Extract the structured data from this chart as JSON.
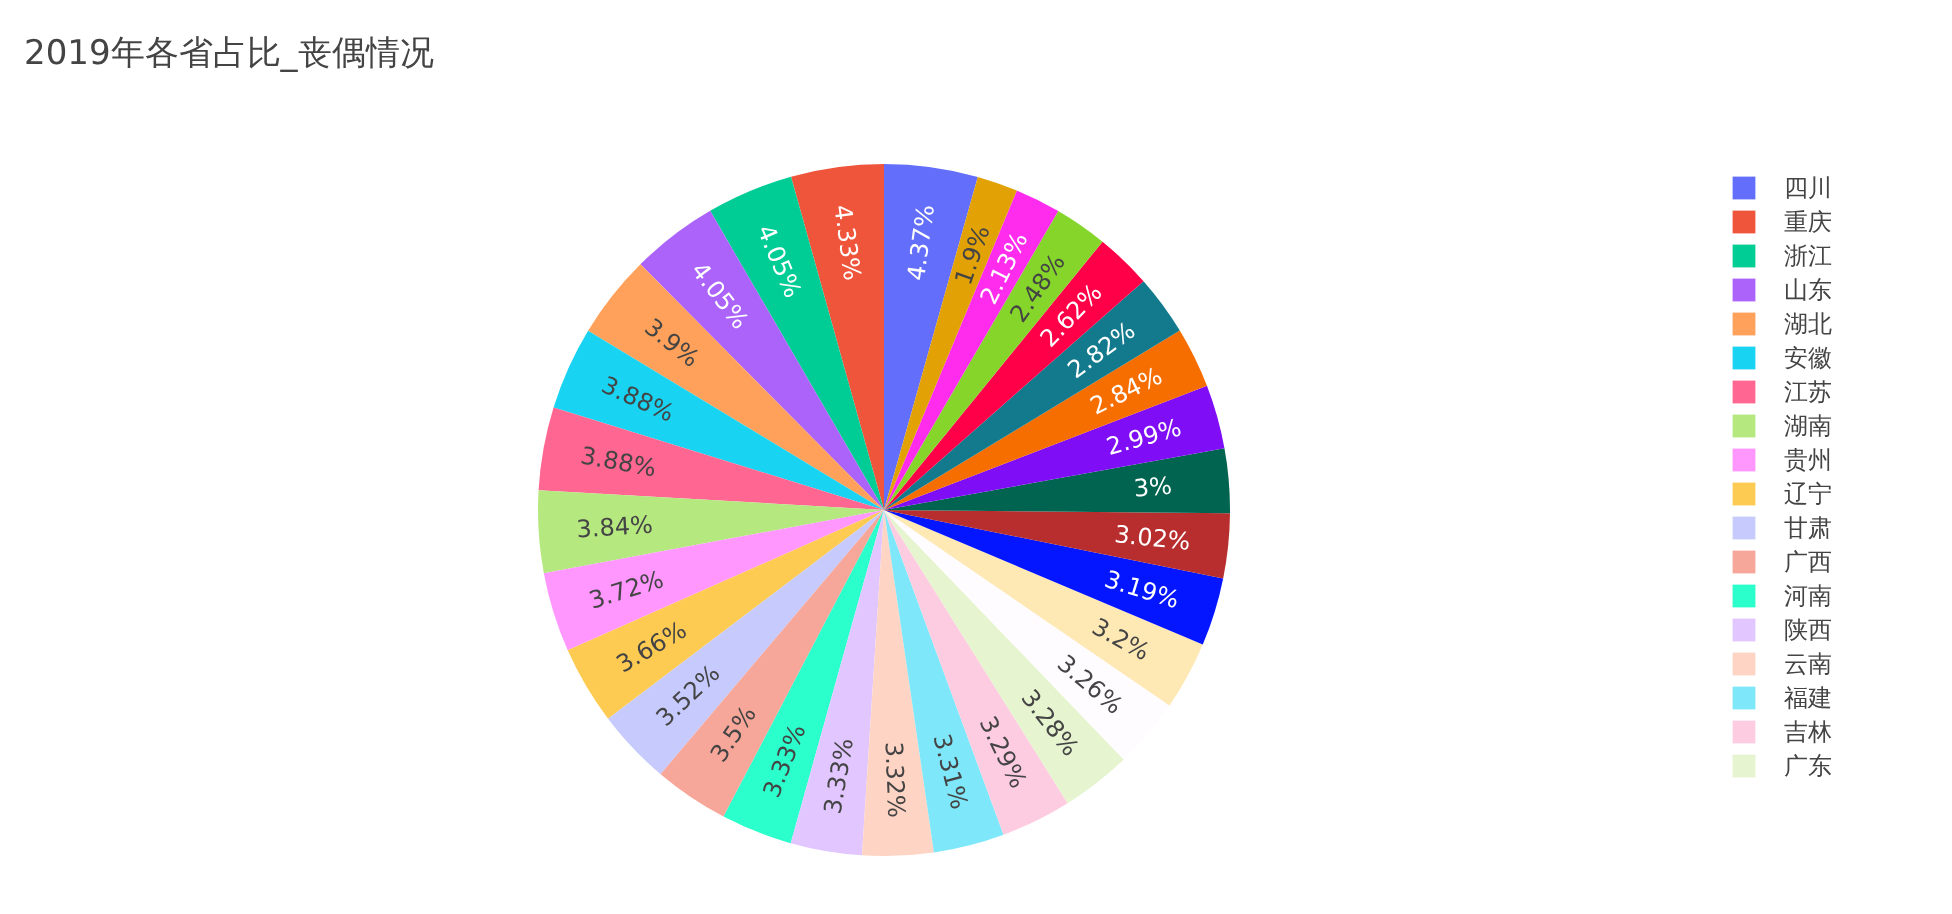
{
  "chart_data": {
    "type": "pie",
    "title": "2019年各省占比_丧偶情况",
    "legend": "top right",
    "categories": [
      "四川",
      "重庆",
      "浙江",
      "山东",
      "湖北",
      "安徽",
      "江苏",
      "湖南",
      "贵州",
      "辽宁",
      "甘肃",
      "广西",
      "河南",
      "陕西",
      "云南",
      "福建",
      "吉林",
      "广东",
      null,
      null,
      null,
      null,
      null,
      null,
      null,
      null,
      null,
      null,
      null,
      null
    ],
    "values": [
      4.37,
      4.33,
      4.05,
      4.05,
      3.9,
      3.88,
      3.88,
      3.84,
      3.72,
      3.66,
      3.52,
      3.5,
      3.33,
      3.33,
      3.32,
      3.31,
      3.29,
      3.28,
      3.26,
      3.2,
      3.19,
      3.02,
      3,
      2.99,
      2.84,
      2.82,
      2.62,
      2.48,
      2.13,
      1.9
    ],
    "value_labels": [
      "4.37%",
      "4.33%",
      "4.05%",
      "4.05%",
      "3.9%",
      "3.88%",
      "3.88%",
      "3.84%",
      "3.72%",
      "3.66%",
      "3.52%",
      "3.5%",
      "3.33%",
      "3.33%",
      "3.32%",
      "3.31%",
      "3.29%",
      "3.28%",
      "3.26%",
      "3.2%",
      "3.19%",
      "3.02%",
      "3%",
      "2.99%",
      "2.84%",
      "2.82%",
      "2.62%",
      "2.48%",
      "2.13%",
      "1.9%"
    ],
    "colors": [
      "#636efa",
      "#ef553b",
      "#00cc96",
      "#ab63fa",
      "#ffa15a",
      "#19d3f3",
      "#ff6692",
      "#b6e880",
      "#ff97ff",
      "#fecb52",
      "#c6cafd",
      "#f7a799",
      "#2bffcb",
      "#e2c6ff",
      "#fed4c4",
      "#7ee8fa",
      "#fecce0",
      "#e6f5d0",
      "#fffcff",
      "#fee8b4",
      "#0416ff",
      "#b82e2e",
      "#006450",
      "#7f0df5",
      "#f76e00",
      "#13798c",
      "#ff0048",
      "#85d52a",
      "#ff2cee",
      "#e2a206"
    ]
  }
}
